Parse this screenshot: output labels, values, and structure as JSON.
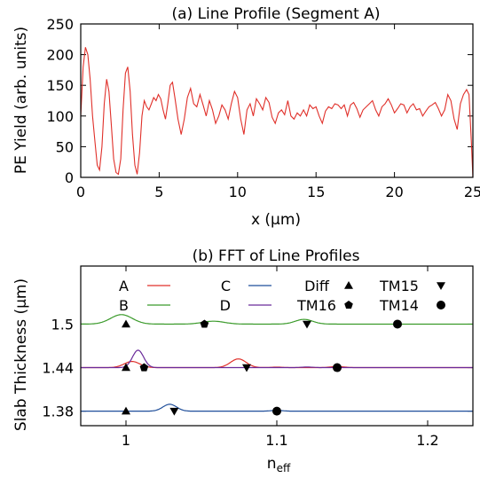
{
  "chart_data": [
    {
      "type": "line",
      "title": "(a) Line Profile (Segment A)",
      "xlabel": "x (μm)",
      "ylabel": "PE Yield (arb. units)",
      "xlim": [
        0,
        25
      ],
      "ylim": [
        0,
        250
      ],
      "x_ticks": [
        "0",
        "5",
        "10",
        "15",
        "20",
        "25"
      ],
      "x_tick_values": [
        0,
        5,
        10,
        15,
        20,
        25
      ],
      "y_ticks": [
        "0",
        "50",
        "100",
        "150",
        "200",
        "250"
      ],
      "y_tick_values": [
        0,
        50,
        100,
        150,
        200,
        250
      ],
      "grid": false,
      "series": [
        {
          "color": "#e0302a",
          "points": [
            [
              0,
              100
            ],
            [
              0.15,
              180
            ],
            [
              0.3,
              212
            ],
            [
              0.45,
              200
            ],
            [
              0.6,
              160
            ],
            [
              0.75,
              100
            ],
            [
              0.9,
              60
            ],
            [
              1.05,
              20
            ],
            [
              1.2,
              12
            ],
            [
              1.35,
              50
            ],
            [
              1.5,
              120
            ],
            [
              1.65,
              160
            ],
            [
              1.8,
              140
            ],
            [
              1.95,
              85
            ],
            [
              2.1,
              30
            ],
            [
              2.25,
              8
            ],
            [
              2.4,
              5
            ],
            [
              2.55,
              30
            ],
            [
              2.7,
              110
            ],
            [
              2.85,
              170
            ],
            [
              3.0,
              180
            ],
            [
              3.15,
              140
            ],
            [
              3.3,
              70
            ],
            [
              3.45,
              20
            ],
            [
              3.6,
              5
            ],
            [
              3.75,
              40
            ],
            [
              3.9,
              100
            ],
            [
              4.05,
              125
            ],
            [
              4.2,
              115
            ],
            [
              4.35,
              110
            ],
            [
              4.5,
              120
            ],
            [
              4.65,
              130
            ],
            [
              4.8,
              125
            ],
            [
              4.95,
              135
            ],
            [
              5.1,
              128
            ],
            [
              5.25,
              110
            ],
            [
              5.4,
              95
            ],
            [
              5.55,
              120
            ],
            [
              5.7,
              150
            ],
            [
              5.85,
              155
            ],
            [
              6.0,
              130
            ],
            [
              6.2,
              95
            ],
            [
              6.4,
              70
            ],
            [
              6.6,
              95
            ],
            [
              6.8,
              130
            ],
            [
              7.0,
              145
            ],
            [
              7.2,
              120
            ],
            [
              7.4,
              115
            ],
            [
              7.6,
              135
            ],
            [
              7.8,
              118
            ],
            [
              8.0,
              100
            ],
            [
              8.2,
              125
            ],
            [
              8.4,
              110
            ],
            [
              8.6,
              88
            ],
            [
              8.8,
              100
            ],
            [
              9.0,
              118
            ],
            [
              9.2,
              110
            ],
            [
              9.4,
              95
            ],
            [
              9.6,
              120
            ],
            [
              9.8,
              140
            ],
            [
              10.0,
              130
            ],
            [
              10.2,
              95
            ],
            [
              10.4,
              70
            ],
            [
              10.6,
              110
            ],
            [
              10.8,
              120
            ],
            [
              11.0,
              100
            ],
            [
              11.2,
              128
            ],
            [
              11.4,
              120
            ],
            [
              11.6,
              110
            ],
            [
              11.8,
              130
            ],
            [
              12.0,
              122
            ],
            [
              12.2,
              98
            ],
            [
              12.4,
              88
            ],
            [
              12.6,
              105
            ],
            [
              12.8,
              110
            ],
            [
              13.0,
              102
            ],
            [
              13.2,
              125
            ],
            [
              13.4,
              100
            ],
            [
              13.6,
              95
            ],
            [
              13.8,
              105
            ],
            [
              14.0,
              100
            ],
            [
              14.2,
              110
            ],
            [
              14.4,
              100
            ],
            [
              14.6,
              118
            ],
            [
              14.8,
              112
            ],
            [
              15.0,
              115
            ],
            [
              15.2,
              100
            ],
            [
              15.4,
              88
            ],
            [
              15.6,
              108
            ],
            [
              15.8,
              115
            ],
            [
              16.0,
              112
            ],
            [
              16.2,
              120
            ],
            [
              16.4,
              118
            ],
            [
              16.6,
              112
            ],
            [
              16.8,
              118
            ],
            [
              17.0,
              100
            ],
            [
              17.2,
              118
            ],
            [
              17.4,
              122
            ],
            [
              17.6,
              112
            ],
            [
              17.8,
              98
            ],
            [
              18.0,
              110
            ],
            [
              18.2,
              115
            ],
            [
              18.4,
              120
            ],
            [
              18.6,
              125
            ],
            [
              18.8,
              110
            ],
            [
              19.0,
              100
            ],
            [
              19.2,
              115
            ],
            [
              19.4,
              120
            ],
            [
              19.6,
              128
            ],
            [
              19.8,
              118
            ],
            [
              20.0,
              105
            ],
            [
              20.2,
              112
            ],
            [
              20.4,
              120
            ],
            [
              20.6,
              118
            ],
            [
              20.8,
              105
            ],
            [
              21.0,
              115
            ],
            [
              21.2,
              120
            ],
            [
              21.4,
              110
            ],
            [
              21.6,
              112
            ],
            [
              21.8,
              100
            ],
            [
              22.0,
              108
            ],
            [
              22.2,
              115
            ],
            [
              22.4,
              118
            ],
            [
              22.6,
              122
            ],
            [
              22.8,
              112
            ],
            [
              23.0,
              100
            ],
            [
              23.2,
              110
            ],
            [
              23.4,
              135
            ],
            [
              23.6,
              125
            ],
            [
              23.8,
              95
            ],
            [
              24.0,
              78
            ],
            [
              24.2,
              120
            ],
            [
              24.4,
              135
            ],
            [
              24.6,
              143
            ],
            [
              24.75,
              135
            ],
            [
              24.9,
              60
            ],
            [
              25.0,
              0
            ]
          ]
        }
      ]
    },
    {
      "type": "line",
      "title": "(b) FFT of Line Profiles",
      "xlabel": "n",
      "xlabel_sub": "eff",
      "ylabel": "Slab Thickness (μm)",
      "xlim": [
        0.97,
        1.23
      ],
      "ylim": [
        1.36,
        1.58
      ],
      "x_ticks": [
        "1",
        "1.1",
        "1.2"
      ],
      "x_tick_values": [
        1,
        1.1,
        1.2
      ],
      "y_ticks": [
        "1.38",
        "1.44",
        "1.5"
      ],
      "y_tick_values": [
        1.38,
        1.44,
        1.5
      ],
      "grid": false,
      "legend_position": "top",
      "legend": [
        {
          "label": "A",
          "kind": "line",
          "color": "#e0302a"
        },
        {
          "label": "C",
          "kind": "line",
          "color": "#1f4e9a"
        },
        {
          "label": "Diff",
          "kind": "line",
          "color": "#ffffff"
        },
        {
          "label": "TM15",
          "kind": "marker",
          "marker": "triangle-up"
        },
        {
          "label": "B",
          "kind": "line",
          "color": "#3a9a2a"
        },
        {
          "label": "D",
          "kind": "line",
          "color": "#6a2a9a"
        },
        {
          "label": "TM16",
          "kind": "marker",
          "marker": "triangle-down"
        },
        {
          "label": "TM14",
          "kind": "marker",
          "marker": "pentagon"
        },
        {
          "label": "",
          "kind": "marker",
          "marker": "circle"
        }
      ],
      "series": [
        {
          "legend": "B",
          "color": "#3a9a2a",
          "baseline": 1.5,
          "peaks": [
            [
              0.997,
              0.013,
              0.0072
            ],
            [
              1.058,
              0.004,
              0.0072
            ],
            [
              1.118,
              0.0065,
              0.0058
            ]
          ]
        },
        {
          "legend": "A",
          "color": "#e0302a",
          "baseline": 1.44,
          "peaks": [
            [
              1.004,
              0.0085,
              0.0052
            ],
            [
              1.0745,
              0.012,
              0.0052
            ],
            [
              1.14,
              0.0015,
              0.0045
            ],
            [
              1.1,
              0.0007,
              0.004
            ]
          ]
        },
        {
          "legend": "D",
          "color": "#6a2a9a",
          "baseline": 1.44,
          "peaks": [
            [
              1.008,
              0.024,
              0.0037
            ],
            [
              1.12,
              0.0008,
              0.004
            ]
          ]
        },
        {
          "legend": "C",
          "color": "#1f4e9a",
          "baseline": 1.38,
          "peaks": [
            [
              1.029,
              0.0095,
              0.0045
            ],
            [
              1.1,
              0.001,
              0.004
            ]
          ]
        }
      ],
      "markers": [
        {
          "shape": "triangle-up",
          "x": 1.0,
          "y": 1.5
        },
        {
          "shape": "pentagon",
          "x": 1.052,
          "y": 1.5
        },
        {
          "shape": "triangle-down",
          "x": 1.12,
          "y": 1.5
        },
        {
          "shape": "circle",
          "x": 1.18,
          "y": 1.5
        },
        {
          "shape": "triangle-up",
          "x": 1.0,
          "y": 1.44
        },
        {
          "shape": "pentagon",
          "x": 1.012,
          "y": 1.44
        },
        {
          "shape": "triangle-down",
          "x": 1.08,
          "y": 1.44
        },
        {
          "shape": "circle",
          "x": 1.14,
          "y": 1.44
        },
        {
          "shape": "triangle-up",
          "x": 1.0,
          "y": 1.38
        },
        {
          "shape": "triangle-down",
          "x": 1.032,
          "y": 1.38
        },
        {
          "shape": "circle",
          "x": 1.1,
          "y": 1.38
        }
      ]
    }
  ]
}
